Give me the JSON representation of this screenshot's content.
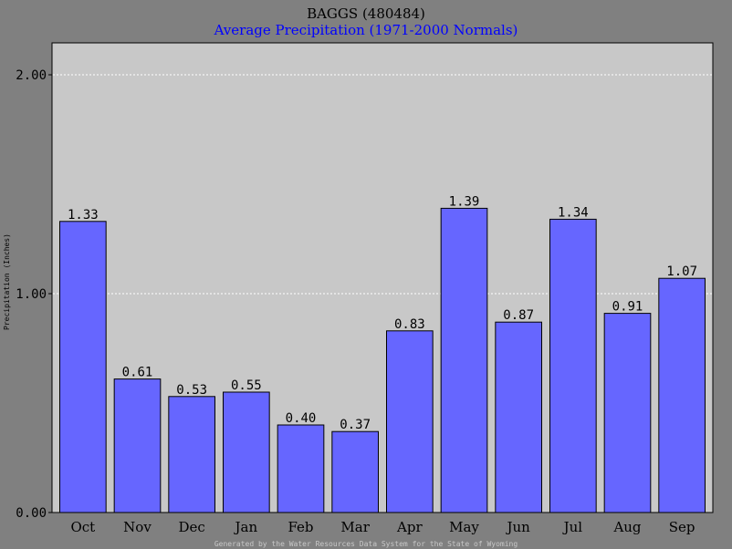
{
  "chart_data": {
    "type": "bar",
    "title": "BAGGS (480484)",
    "subtitle": "Average Precipitation (1971-2000 Normals)",
    "ylabel": "Precipitation (Inches)",
    "xlabel": "",
    "categories": [
      "Oct",
      "Nov",
      "Dec",
      "Jan",
      "Feb",
      "Mar",
      "Apr",
      "May",
      "Jun",
      "Jul",
      "Aug",
      "Sep"
    ],
    "values": [
      1.33,
      0.61,
      0.53,
      0.55,
      0.4,
      0.37,
      0.83,
      1.39,
      0.87,
      1.34,
      0.91,
      1.07
    ],
    "value_labels": [
      "1.33",
      "0.61",
      "0.53",
      "0.55",
      "0.40",
      "0.37",
      "0.83",
      "1.39",
      "0.87",
      "1.34",
      "0.91",
      "1.07"
    ],
    "ylim": [
      0,
      2.2
    ],
    "yticks": [
      0,
      1,
      2
    ],
    "ytick_labels": [
      "0.00",
      "1.00",
      "2.00"
    ],
    "grid": true,
    "grid_style": "dotted-white",
    "legend": "none",
    "colors": {
      "bar": "#6666ff",
      "plot_background": "#c8c8c8",
      "page_background": "#808080",
      "subtitle": "#0000ff",
      "footer": "#c8c8c8"
    },
    "footer": "Generated by the Water Resources Data System for the State of Wyoming"
  }
}
